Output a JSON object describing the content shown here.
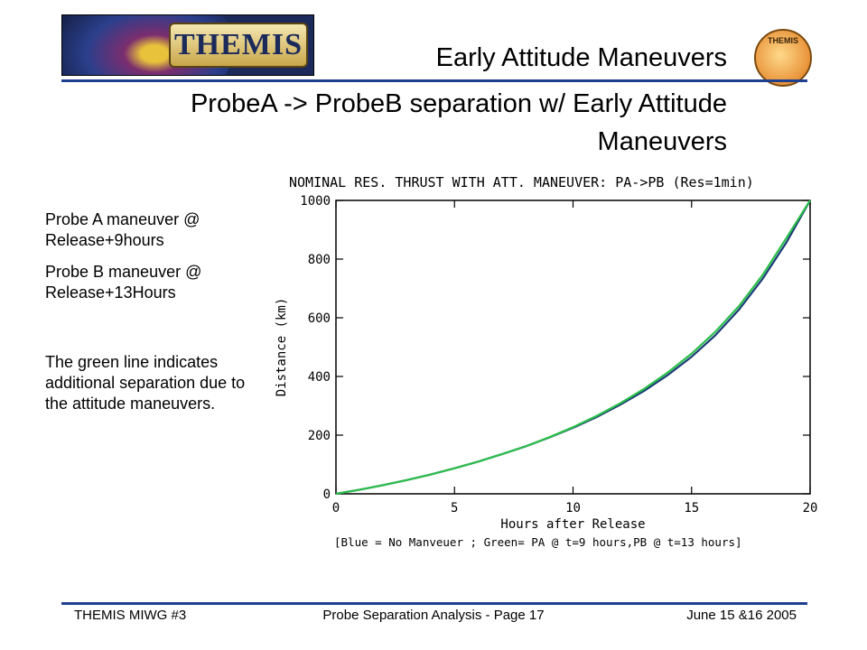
{
  "header": {
    "logo_text": "THEMIS",
    "seal_text": "THEMIS",
    "title": "Early Attitude Maneuvers",
    "subtitle": "ProbeA -> ProbeB separation w/ Early Attitude Maneuvers"
  },
  "notes": {
    "probe_a": "Probe A maneuver @ Release+9hours",
    "probe_b": "Probe B maneuver @ Release+13Hours",
    "explanation": "The green line indicates additional separation due to the attitude maneuvers."
  },
  "footer": {
    "left": "THEMIS MIWG #3",
    "center": "Probe Separation Analysis - Page 17",
    "right": "June 15 &16 2005"
  },
  "colors": {
    "rule": "#1f3f8f",
    "blue_series": "#1a3a78",
    "green_series": "#2bbf4a"
  },
  "chart_data": {
    "type": "line",
    "title": "NOMINAL RES. THRUST WITH ATT. MANEUVER: PA->PB (Res=1min)",
    "xlabel": "Hours after Release",
    "ylabel": "Distance (km)",
    "xlim": [
      0,
      20
    ],
    "ylim": [
      0,
      1000
    ],
    "xticks": [
      0,
      5,
      10,
      15,
      20
    ],
    "yticks": [
      0,
      200,
      400,
      600,
      800,
      1000
    ],
    "legend_caption": "[Blue = No Manveuer ; Green= PA @ t=9 hours,PB @ t=13 hours]",
    "grid": false,
    "x": [
      0,
      1,
      2,
      3,
      4,
      5,
      6,
      7,
      8,
      9,
      10,
      11,
      12,
      13,
      14,
      15,
      16,
      17,
      18,
      19,
      20
    ],
    "series": [
      {
        "name": "Blue",
        "values": [
          0,
          14,
          30,
          47,
          66,
          87,
          110,
          135,
          162,
          192,
          225,
          262,
          304,
          351,
          405,
          467,
          540,
          628,
          733,
          857,
          1000
        ]
      },
      {
        "name": "Green",
        "values": [
          0,
          14,
          30,
          47,
          66,
          87,
          110,
          135,
          162,
          193,
          227,
          266,
          309,
          358,
          414,
          478,
          552,
          640,
          746,
          872,
          1020
        ]
      }
    ]
  }
}
